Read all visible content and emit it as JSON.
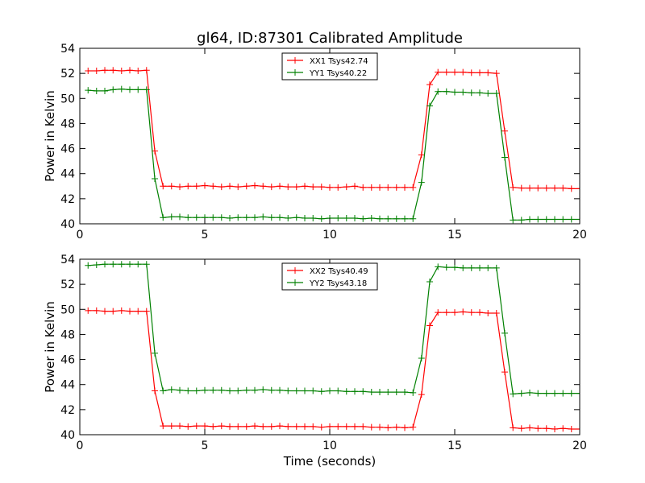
{
  "figure": {
    "title": "gl64, ID:87301 Calibrated Amplitude",
    "xlabel": "Time (seconds)"
  },
  "chart_data": [
    {
      "type": "line",
      "title": "gl64, ID:87301 Calibrated Amplitude",
      "xlabel": "",
      "ylabel": "Power in Kelvin",
      "xlim": [
        0,
        20
      ],
      "ylim": [
        40,
        54
      ],
      "xticks": [
        0,
        5,
        10,
        15,
        20
      ],
      "yticks": [
        40,
        42,
        44,
        46,
        48,
        50,
        52,
        54
      ],
      "grid": false,
      "legend_position": "top-center",
      "x": [
        0.33,
        0.67,
        1.0,
        1.33,
        1.67,
        2.0,
        2.33,
        2.67,
        3.0,
        3.33,
        3.67,
        4.0,
        4.33,
        4.67,
        5.0,
        5.33,
        5.67,
        6.0,
        6.33,
        6.67,
        7.0,
        7.33,
        7.67,
        8.0,
        8.33,
        8.67,
        9.0,
        9.33,
        9.67,
        10.0,
        10.33,
        10.67,
        11.0,
        11.33,
        11.67,
        12.0,
        12.33,
        12.67,
        13.0,
        13.33,
        13.67,
        14.0,
        14.33,
        14.67,
        15.0,
        15.33,
        15.67,
        16.0,
        16.33,
        16.67,
        17.0,
        17.33,
        17.67,
        18.0,
        18.33,
        18.67,
        19.0,
        19.33,
        19.67,
        20.0
      ],
      "series": [
        {
          "name": "XX1 Tsys42.74",
          "color": "#ff0000",
          "values": [
            52.2,
            52.2,
            52.25,
            52.25,
            52.2,
            52.25,
            52.2,
            52.25,
            45.8,
            43.0,
            43.0,
            42.95,
            43.0,
            43.0,
            43.05,
            43.0,
            42.95,
            43.0,
            42.95,
            43.0,
            43.05,
            43.0,
            42.95,
            43.0,
            42.95,
            42.95,
            43.0,
            42.95,
            42.95,
            42.9,
            42.9,
            42.95,
            43.0,
            42.9,
            42.9,
            42.9,
            42.9,
            42.9,
            42.9,
            42.9,
            45.5,
            51.1,
            52.1,
            52.1,
            52.1,
            52.1,
            52.05,
            52.05,
            52.05,
            52.0,
            47.4,
            42.9,
            42.85,
            42.85,
            42.85,
            42.85,
            42.85,
            42.85,
            42.8,
            42.8
          ]
        },
        {
          "name": "YY1 Tsys40.22",
          "color": "#008000",
          "values": [
            50.65,
            50.6,
            50.6,
            50.7,
            50.75,
            50.7,
            50.7,
            50.7,
            43.6,
            40.5,
            40.55,
            40.55,
            40.5,
            40.5,
            40.5,
            40.5,
            40.5,
            40.45,
            40.5,
            40.5,
            40.5,
            40.55,
            40.5,
            40.5,
            40.45,
            40.5,
            40.45,
            40.45,
            40.4,
            40.45,
            40.45,
            40.45,
            40.45,
            40.4,
            40.45,
            40.4,
            40.4,
            40.4,
            40.4,
            40.4,
            43.3,
            49.4,
            50.55,
            50.55,
            50.5,
            50.5,
            50.45,
            50.45,
            50.4,
            50.4,
            45.3,
            40.3,
            40.3,
            40.35,
            40.35,
            40.35,
            40.35,
            40.35,
            40.35,
            40.35
          ]
        }
      ]
    },
    {
      "type": "line",
      "title": "",
      "xlabel": "Time (seconds)",
      "ylabel": "Power in Kelvin",
      "xlim": [
        0,
        20
      ],
      "ylim": [
        40,
        54
      ],
      "xticks": [
        0,
        5,
        10,
        15,
        20
      ],
      "yticks": [
        40,
        42,
        44,
        46,
        48,
        50,
        52,
        54
      ],
      "grid": false,
      "legend_position": "top-center",
      "x": [
        0.33,
        0.67,
        1.0,
        1.33,
        1.67,
        2.0,
        2.33,
        2.67,
        3.0,
        3.33,
        3.67,
        4.0,
        4.33,
        4.67,
        5.0,
        5.33,
        5.67,
        6.0,
        6.33,
        6.67,
        7.0,
        7.33,
        7.67,
        8.0,
        8.33,
        8.67,
        9.0,
        9.33,
        9.67,
        10.0,
        10.33,
        10.67,
        11.0,
        11.33,
        11.67,
        12.0,
        12.33,
        12.67,
        13.0,
        13.33,
        13.67,
        14.0,
        14.33,
        14.67,
        15.0,
        15.33,
        15.67,
        16.0,
        16.33,
        16.67,
        17.0,
        17.33,
        17.67,
        18.0,
        18.33,
        18.67,
        19.0,
        19.33,
        19.67,
        20.0
      ],
      "series": [
        {
          "name": "XX2 Tsys40.49",
          "color": "#ff0000",
          "values": [
            49.9,
            49.9,
            49.85,
            49.85,
            49.9,
            49.85,
            49.85,
            49.85,
            43.5,
            40.7,
            40.7,
            40.7,
            40.65,
            40.7,
            40.7,
            40.65,
            40.7,
            40.65,
            40.65,
            40.65,
            40.7,
            40.65,
            40.65,
            40.7,
            40.65,
            40.65,
            40.65,
            40.65,
            40.6,
            40.65,
            40.65,
            40.65,
            40.65,
            40.65,
            40.6,
            40.6,
            40.55,
            40.6,
            40.55,
            40.6,
            43.2,
            48.7,
            49.75,
            49.75,
            49.75,
            49.8,
            49.75,
            49.75,
            49.7,
            49.7,
            45.0,
            40.55,
            40.5,
            40.55,
            40.5,
            40.5,
            40.45,
            40.5,
            40.45,
            40.45
          ]
        },
        {
          "name": "YY2 Tsys43.18",
          "color": "#008000",
          "values": [
            53.5,
            53.55,
            53.6,
            53.6,
            53.6,
            53.6,
            53.6,
            53.6,
            46.5,
            43.5,
            43.6,
            43.55,
            43.5,
            43.5,
            43.55,
            43.55,
            43.55,
            43.5,
            43.5,
            43.55,
            43.55,
            43.6,
            43.55,
            43.55,
            43.5,
            43.5,
            43.5,
            43.5,
            43.45,
            43.5,
            43.5,
            43.45,
            43.45,
            43.45,
            43.4,
            43.4,
            43.4,
            43.4,
            43.4,
            43.35,
            46.1,
            52.2,
            53.4,
            53.35,
            53.35,
            53.3,
            53.3,
            53.3,
            53.3,
            53.3,
            48.1,
            43.25,
            43.3,
            43.35,
            43.3,
            43.3,
            43.3,
            43.3,
            43.3,
            43.3
          ]
        }
      ]
    }
  ]
}
